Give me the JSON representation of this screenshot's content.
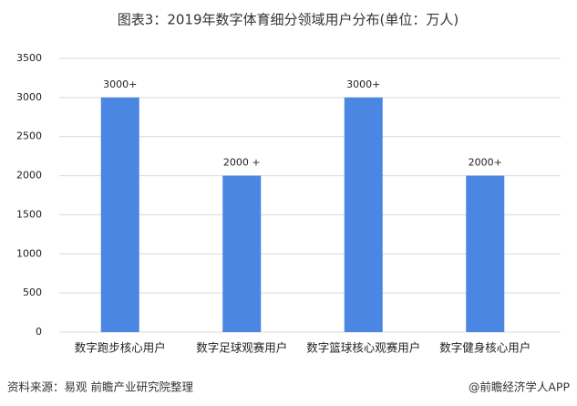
{
  "chart_data": {
    "type": "bar",
    "title": "图表3：2019年数字体育细分领域用户分布(单位：万人)",
    "categories": [
      "数字跑步核心用户",
      "数字足球观赛用户",
      "数字篮球核心观赛用户",
      "数字健身核心用户"
    ],
    "values": [
      3000,
      2000,
      3000,
      2000
    ],
    "value_labels": [
      "3000+",
      "2000 +",
      "3000+",
      "2000+"
    ],
    "color": "#4a86e2",
    "ylim": [
      0,
      3500
    ],
    "yticks": [
      0,
      500,
      1000,
      1500,
      2000,
      2500,
      3000,
      3500
    ],
    "grid": true,
    "source": "资料来源：易观 前瞻产业研究院整理",
    "credit": "@前瞻经济学人APP"
  }
}
